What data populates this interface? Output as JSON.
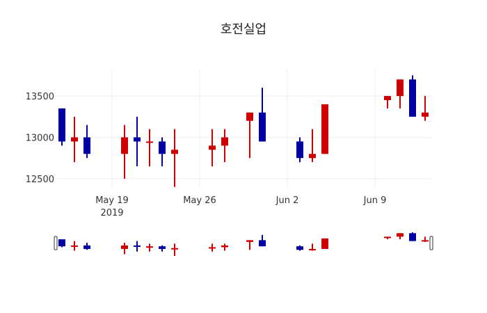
{
  "chart_data": {
    "type": "candlestick",
    "title": "호전실업",
    "xlabel": "",
    "ylabel": "",
    "ylim": [
      12390,
      13820
    ],
    "y_ticks": [
      12500,
      13000,
      13500
    ],
    "x_ticks": [
      {
        "date": "2019-05-19",
        "label": "May 19",
        "sublabel": "2019"
      },
      {
        "date": "2019-05-26",
        "label": "May 26",
        "sublabel": ""
      },
      {
        "date": "2019-06-02",
        "label": "Jun 2",
        "sublabel": ""
      },
      {
        "date": "2019-06-09",
        "label": "Jun 9",
        "sublabel": ""
      }
    ],
    "xlim": [
      "2019-05-14T12:00",
      "2019-06-13T12:00"
    ],
    "grid": true,
    "legend": false,
    "rangeslider": true,
    "colors": {
      "increasing": "#cc0000",
      "decreasing": "#0000a0",
      "grid": "#eeeeee",
      "text": "#333333"
    },
    "candles": [
      {
        "date": "2019-05-15",
        "open": 13350,
        "high": 13350,
        "low": 12900,
        "close": 12950
      },
      {
        "date": "2019-05-16",
        "open": 12950,
        "high": 13250,
        "low": 12700,
        "close": 13000
      },
      {
        "date": "2019-05-17",
        "open": 13000,
        "high": 13150,
        "low": 12750,
        "close": 12800
      },
      {
        "date": "2019-05-20",
        "open": 12800,
        "high": 13150,
        "low": 12500,
        "close": 13000
      },
      {
        "date": "2019-05-21",
        "open": 13000,
        "high": 13250,
        "low": 12650,
        "close": 12950
      },
      {
        "date": "2019-05-22",
        "open": 12950,
        "high": 13100,
        "low": 12650,
        "close": 12950
      },
      {
        "date": "2019-05-23",
        "open": 12950,
        "high": 13000,
        "low": 12650,
        "close": 12800
      },
      {
        "date": "2019-05-24",
        "open": 12800,
        "high": 13100,
        "low": 12400,
        "close": 12850
      },
      {
        "date": "2019-05-27",
        "open": 12850,
        "high": 13100,
        "low": 12650,
        "close": 12900
      },
      {
        "date": "2019-05-28",
        "open": 12900,
        "high": 13100,
        "low": 12700,
        "close": 13000
      },
      {
        "date": "2019-05-30",
        "open": 13200,
        "high": 13300,
        "low": 12750,
        "close": 13300
      },
      {
        "date": "2019-05-31",
        "open": 13300,
        "high": 13600,
        "low": 12950,
        "close": 12950
      },
      {
        "date": "2019-06-03",
        "open": 12950,
        "high": 13000,
        "low": 12700,
        "close": 12750
      },
      {
        "date": "2019-06-04",
        "open": 12750,
        "high": 13100,
        "low": 12700,
        "close": 12800
      },
      {
        "date": "2019-06-05",
        "open": 12800,
        "high": 13400,
        "low": 12800,
        "close": 13400
      },
      {
        "date": "2019-06-10",
        "open": 13450,
        "high": 13500,
        "low": 13350,
        "close": 13500
      },
      {
        "date": "2019-06-11",
        "open": 13500,
        "high": 13700,
        "low": 13350,
        "close": 13700
      },
      {
        "date": "2019-06-12",
        "open": 13700,
        "high": 13750,
        "low": 13250,
        "close": 13250
      },
      {
        "date": "2019-06-13",
        "open": 13250,
        "high": 13500,
        "low": 13200,
        "close": 13300
      }
    ]
  }
}
